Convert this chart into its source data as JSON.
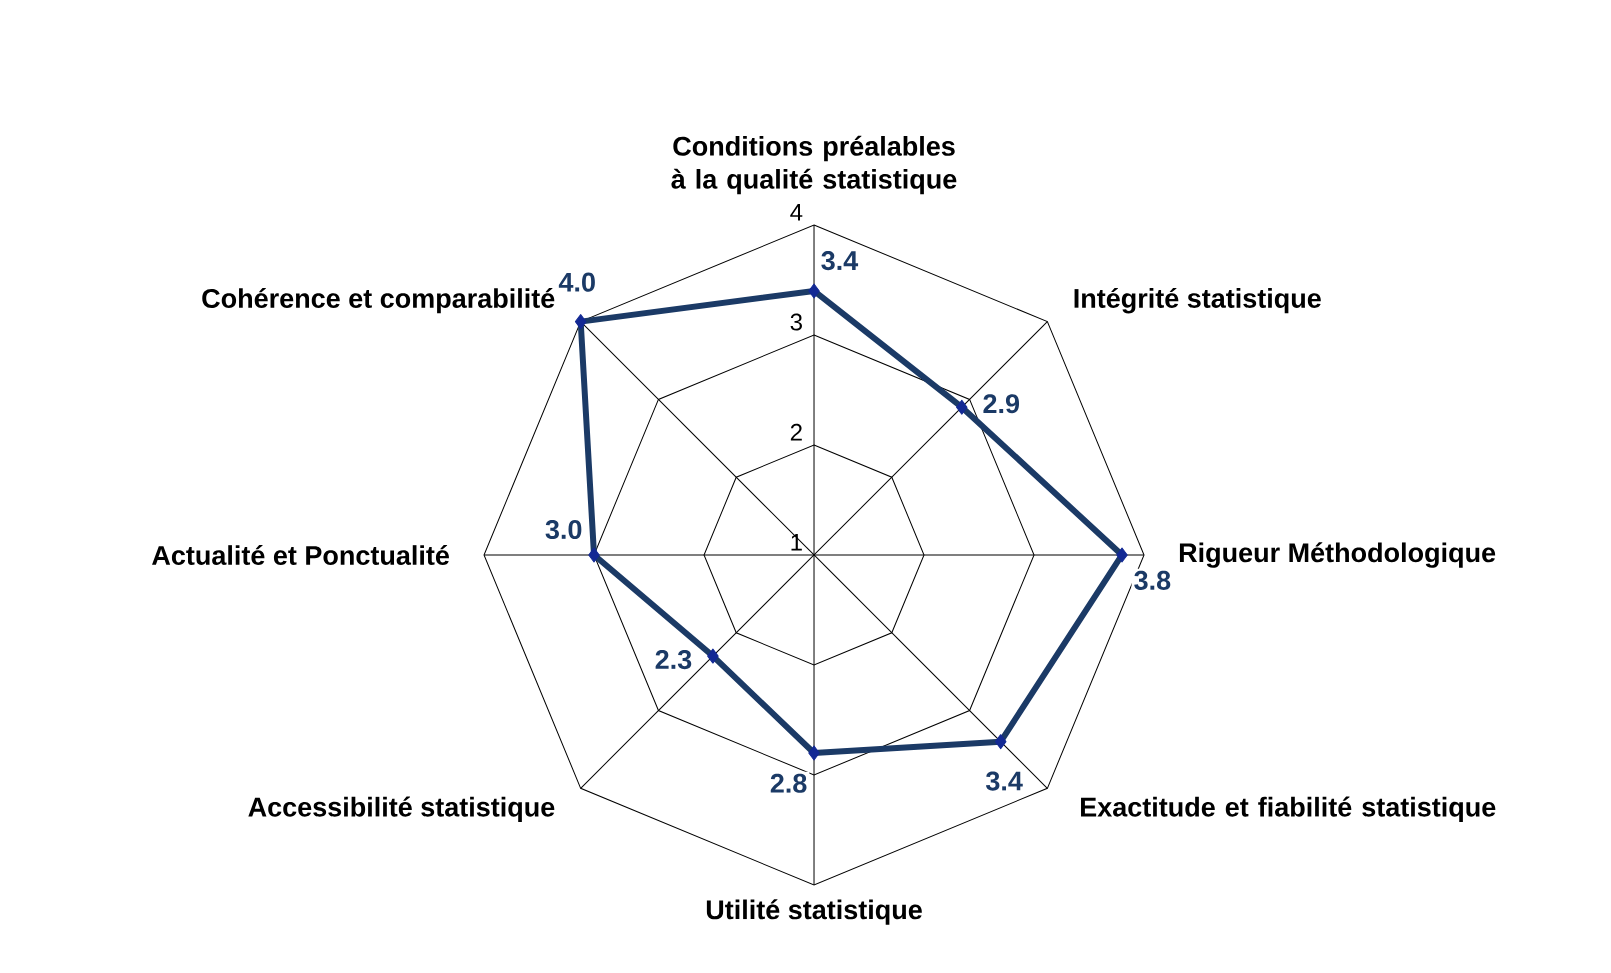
{
  "chart_data": {
    "type": "radar",
    "categories": [
      "Conditions préalables à la qualité statistique",
      "Intégrité statistique",
      "Rigueur Méthodologique",
      "Exactitude et fiabilité statistique",
      "Utilité statistique",
      "Accessibilité statistique",
      "Actualité et Ponctualité",
      "Cohérence et comparabilité"
    ],
    "series": [
      {
        "color": "#1b3a66",
        "values": [
          3.4,
          2.9,
          3.8,
          3.4,
          2.8,
          2.3,
          3.0,
          4.0
        ],
        "value_labels": [
          "3.4",
          "2.9",
          "3.8",
          "3.4",
          "2.8",
          "2.3",
          "3.0",
          "4.0"
        ]
      }
    ],
    "ylim": [
      1,
      4
    ],
    "yticks": [
      1,
      2,
      3,
      4
    ],
    "grid": true,
    "marker": "diamond"
  }
}
